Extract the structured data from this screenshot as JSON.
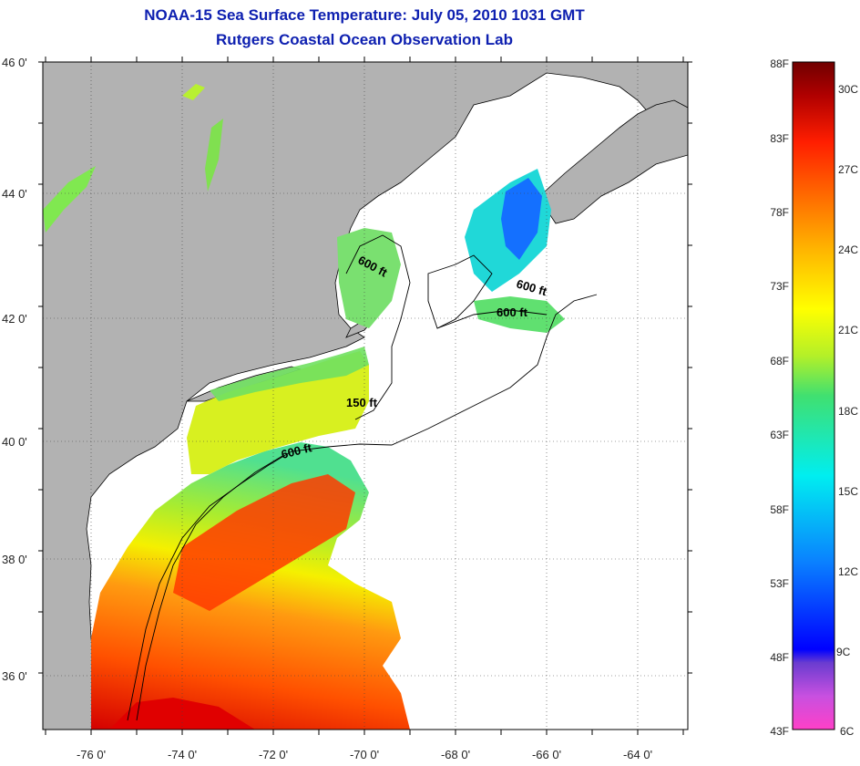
{
  "title": "NOAA-15 Sea Surface Temperature:  July 05, 2010 1031 GMT",
  "subtitle": "Rutgers Coastal Ocean Observation Lab",
  "map": {
    "lat_labels": [
      "46 0'",
      "44 0'",
      "42 0'",
      "40 0'",
      "38 0'",
      "36 0'"
    ],
    "lon_labels": [
      "-76 0'",
      "-74 0'",
      "-72 0'",
      "-70 0'",
      "-68 0'",
      "-66 0'",
      "-64 0'"
    ],
    "contour_labels": [
      "600 ft",
      "600 ft",
      "600 ft",
      "150 ft",
      "600 ft"
    ],
    "colors": {
      "land": "#b2b2b2",
      "ocean_nodata": "#ffffff"
    }
  },
  "colorbar": {
    "f_labels": [
      "88F",
      "83F",
      "78F",
      "73F",
      "68F",
      "63F",
      "58F",
      "53F",
      "48F",
      "43F"
    ],
    "c_labels": [
      "30C",
      "27C",
      "24C",
      "21C",
      "18C",
      "15C",
      "12C",
      "9C",
      "6C"
    ],
    "colors": [
      "#ff40c8",
      "#7a3cc8",
      "#0000ff",
      "#0a8cff",
      "#00e8e8",
      "#40e070",
      "#c8f020",
      "#ffff00",
      "#ffb000",
      "#ff6000",
      "#ff1a00",
      "#aa0000",
      "#7a0000"
    ]
  }
}
